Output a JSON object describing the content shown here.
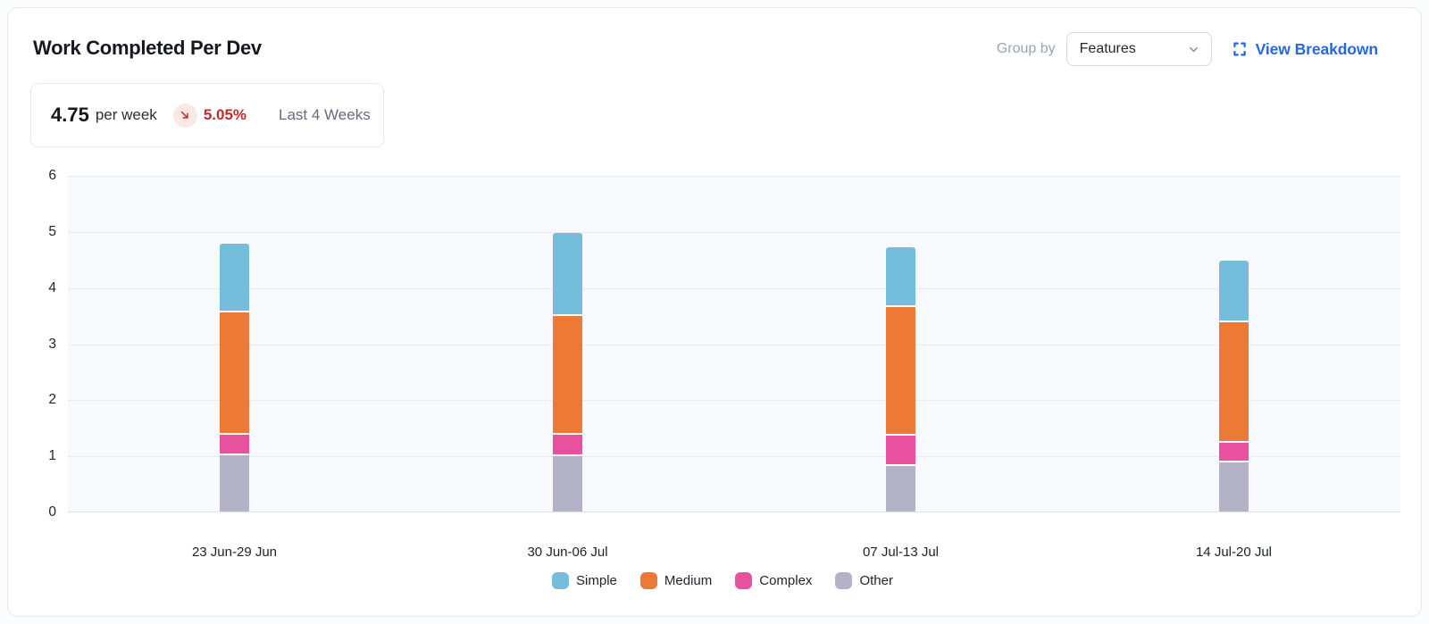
{
  "header": {
    "title": "Work Completed Per Dev",
    "group_by_label": "Group by",
    "group_by_value": "Features",
    "view_breakdown_label": "View Breakdown"
  },
  "stat": {
    "value": "4.75",
    "unit": "per week",
    "delta": "5.05%",
    "delta_direction": "down",
    "period": "Last 4 Weeks"
  },
  "colors": {
    "link_blue": "#2269e3",
    "delta_red": "#c22a29",
    "delta_chip_bg": "#fae8e7",
    "plot_bg": "#f8f9fc",
    "gridline": "#e9ebf0",
    "simple": "#74bedb",
    "medium": "#ec7a36",
    "complex": "#e8519d",
    "other": "#b3b2c7"
  },
  "chart_data": {
    "type": "bar",
    "stacked": true,
    "title": "Work Completed Per Dev",
    "xlabel": "",
    "ylabel": "",
    "ylim": [
      0,
      6
    ],
    "yticks": [
      0,
      1,
      2,
      3,
      4,
      5,
      6
    ],
    "grid": true,
    "legend_position": "bottom",
    "legend_order": [
      "Simple",
      "Medium",
      "Complex",
      "Other"
    ],
    "categories": [
      "23 Jun-29 Jun",
      "30 Jun-06 Jul",
      "07 Jul-13 Jul",
      "14 Jul-20 Jul"
    ],
    "series_bottom_to_top": [
      {
        "name": "Other",
        "color": "#b3b2c7",
        "values": [
          1.04,
          1.02,
          0.85,
          0.91
        ]
      },
      {
        "name": "Complex",
        "color": "#e8519d",
        "values": [
          0.36,
          0.38,
          0.54,
          0.35
        ]
      },
      {
        "name": "Medium",
        "color": "#ec7a36",
        "values": [
          2.19,
          2.12,
          2.29,
          2.15
        ]
      },
      {
        "name": "Simple",
        "color": "#74bedb",
        "values": [
          1.19,
          1.45,
          1.03,
          1.06
        ]
      }
    ],
    "totals": [
      4.78,
      4.97,
      4.71,
      4.47
    ]
  }
}
